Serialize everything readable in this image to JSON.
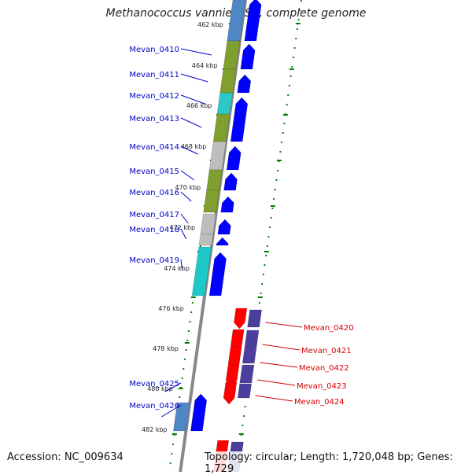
{
  "title": "Methanococcus vannielii SB, complete genome",
  "footer": {
    "accession": "Accession: NC_009634",
    "summary": "Topology: circular; Length: 1,720,048 bp; Genes: 1,729"
  },
  "colors": {
    "forward_gene": "#0000ff",
    "reverse_gene": "#ff0000",
    "forward_label": "#0000cc",
    "reverse_label": "#d40000",
    "tick": "#008000",
    "backbone": "#888888"
  },
  "kbp_labels": [
    "462 kbp",
    "464 kbp",
    "466 kbp",
    "468 kbp",
    "470 kbp",
    "472 kbp",
    "474 kbp",
    "476 kbp",
    "478 kbp",
    "480 kbp",
    "482 kbp"
  ],
  "forward_genes": [
    "Mevan_0410",
    "Mevan_0411",
    "Mevan_0412",
    "Mevan_0413",
    "Mevan_0414",
    "Mevan_0415",
    "Mevan_0416",
    "Mevan_0417",
    "Mevan_0418",
    "Mevan_0419",
    "Mevan_0425",
    "Mevan_0426"
  ],
  "reverse_genes": [
    "Mevan_0420",
    "Mevan_0421",
    "Mevan_0422",
    "Mevan_0423",
    "Mevan_0424"
  ]
}
